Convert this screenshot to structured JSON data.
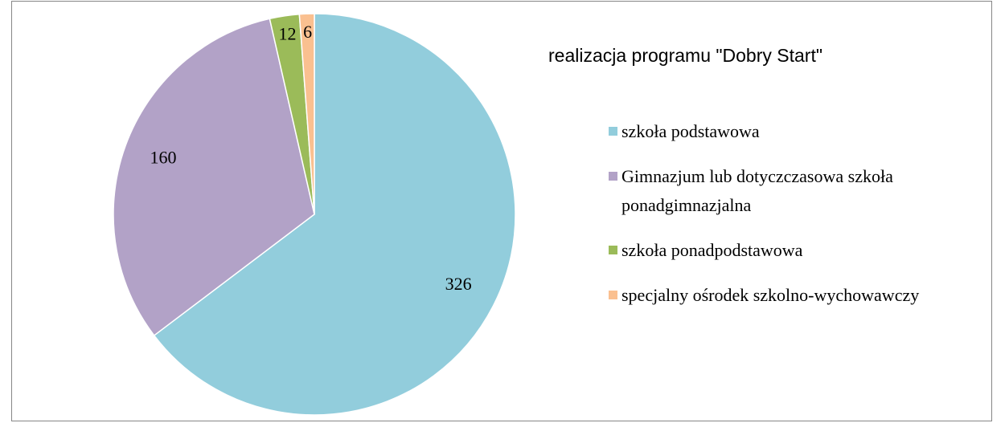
{
  "chart_data": {
    "type": "pie",
    "title": "realizacja programu \"Dobry Start\"",
    "categories": [
      "szkoła podstawowa",
      "Gimnazjum lub dotyczczasowa szkoła ponadgimnazjalna",
      "szkoła ponadpodstawowa",
      "specjalny ośrodek szkolno-wychowawczy"
    ],
    "values": [
      326,
      160,
      12,
      6
    ],
    "colors": [
      "#92CDDC",
      "#B2A2C7",
      "#9BBB59",
      "#FAC090"
    ],
    "legend": "right"
  }
}
